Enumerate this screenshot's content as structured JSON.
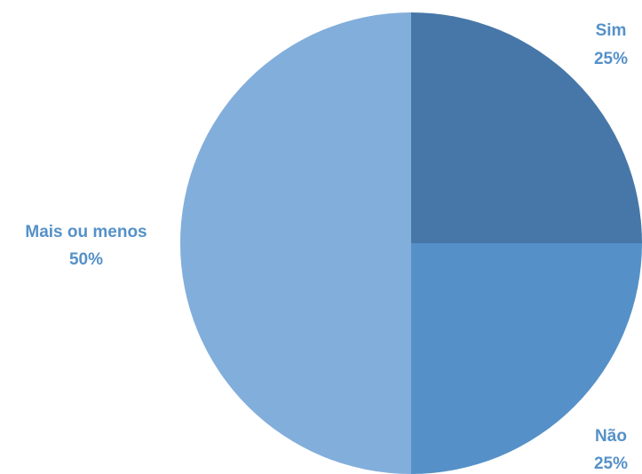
{
  "chart_data": {
    "type": "pie",
    "title": "",
    "slices": [
      {
        "label": "Sim",
        "value": 25,
        "percent_label": "25%",
        "color": "#4677A8"
      },
      {
        "label": "Não",
        "value": 25,
        "percent_label": "25%",
        "color": "#5591C8"
      },
      {
        "label": "Mais ou menos",
        "value": 50,
        "percent_label": "50%",
        "color": "#82AEDB"
      }
    ],
    "start_angle": "12 o'clock",
    "direction": "clockwise",
    "legend": "none",
    "label_color": "#5591C8"
  }
}
